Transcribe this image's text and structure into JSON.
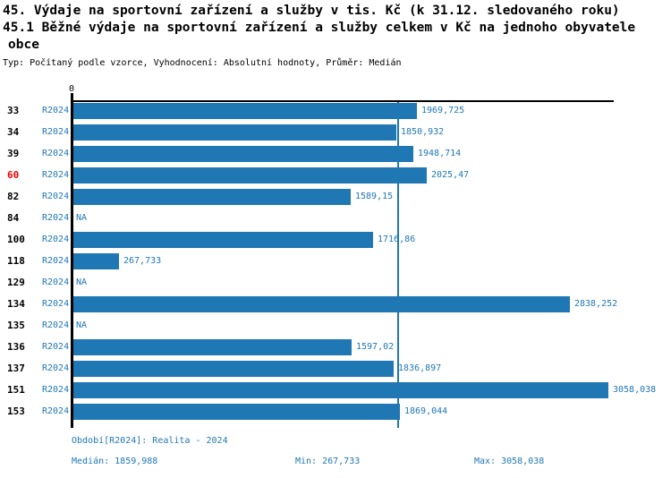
{
  "header": {
    "line1": "45. Výdaje na sportovní zařízení a služby v tis. Kč (k 31.12. sledovaného roku)",
    "line2": "45.1 Běžné výdaje na sportovní zařízení a služby celkem v Kč na jednoho obyvatele",
    "line3": "obce",
    "meta": "Typ: Počítaný podle vzorce, Vyhodnocení: Absolutní hodnoty, Průměr: Medián"
  },
  "chart": {
    "zero_label": "0",
    "bar_color": "#1f77b4",
    "text_blue": "#1f77b4",
    "highlight_color": "#ee0000",
    "highlight_row_id": "60",
    "na_label": "NA"
  },
  "rows": [
    {
      "id": "33",
      "period": "R2024",
      "value": 1969.725,
      "label": "1969,725"
    },
    {
      "id": "34",
      "period": "R2024",
      "value": 1850.932,
      "label": "1850,932"
    },
    {
      "id": "39",
      "period": "R2024",
      "value": 1948.714,
      "label": "1948,714"
    },
    {
      "id": "60",
      "period": "R2024",
      "value": 2025.47,
      "label": "2025,47",
      "highlight": true
    },
    {
      "id": "82",
      "period": "R2024",
      "value": 1589.15,
      "label": "1589,15"
    },
    {
      "id": "84",
      "period": "R2024",
      "value": null,
      "label": "NA"
    },
    {
      "id": "100",
      "period": "R2024",
      "value": 1716.86,
      "label": "1716,86"
    },
    {
      "id": "118",
      "period": "R2024",
      "value": 267.733,
      "label": "267,733"
    },
    {
      "id": "129",
      "period": "R2024",
      "value": null,
      "label": "NA"
    },
    {
      "id": "134",
      "period": "R2024",
      "value": 2838.252,
      "label": "2838,252"
    },
    {
      "id": "135",
      "period": "R2024",
      "value": null,
      "label": "NA"
    },
    {
      "id": "136",
      "period": "R2024",
      "value": 1597.02,
      "label": "1597,02"
    },
    {
      "id": "137",
      "period": "R2024",
      "value": 1836.897,
      "label": "1836,897"
    },
    {
      "id": "151",
      "period": "R2024",
      "value": 3058.038,
      "label": "3058,038"
    },
    {
      "id": "153",
      "period": "R2024",
      "value": 1869.044,
      "label": "1869,044"
    }
  ],
  "footer": {
    "period_line": "Období[R2024]: Realita - 2024",
    "median": "Medián: 1859,988",
    "min": "Min: 267,733",
    "max": "Max: 3058,038"
  },
  "chart_data": {
    "type": "bar",
    "orientation": "horizontal",
    "title": "45.1 Běžné výdaje na sportovní zařízení a služby celkem v Kč na jednoho obyvatele obce",
    "categories": [
      "33",
      "34",
      "39",
      "60",
      "82",
      "84",
      "100",
      "118",
      "129",
      "134",
      "135",
      "136",
      "137",
      "151",
      "153"
    ],
    "series": [
      {
        "name": "R2024",
        "values": [
          1969.725,
          1850.932,
          1948.714,
          2025.47,
          1589.15,
          null,
          1716.86,
          267.733,
          null,
          2838.252,
          null,
          1597.02,
          1836.897,
          3058.038,
          1869.044
        ]
      }
    ],
    "median": 1859.988,
    "min": 267.733,
    "max": 3058.038,
    "xlim": [
      0,
      3090
    ],
    "median_line": true,
    "grid": false,
    "legend_position": "none"
  }
}
